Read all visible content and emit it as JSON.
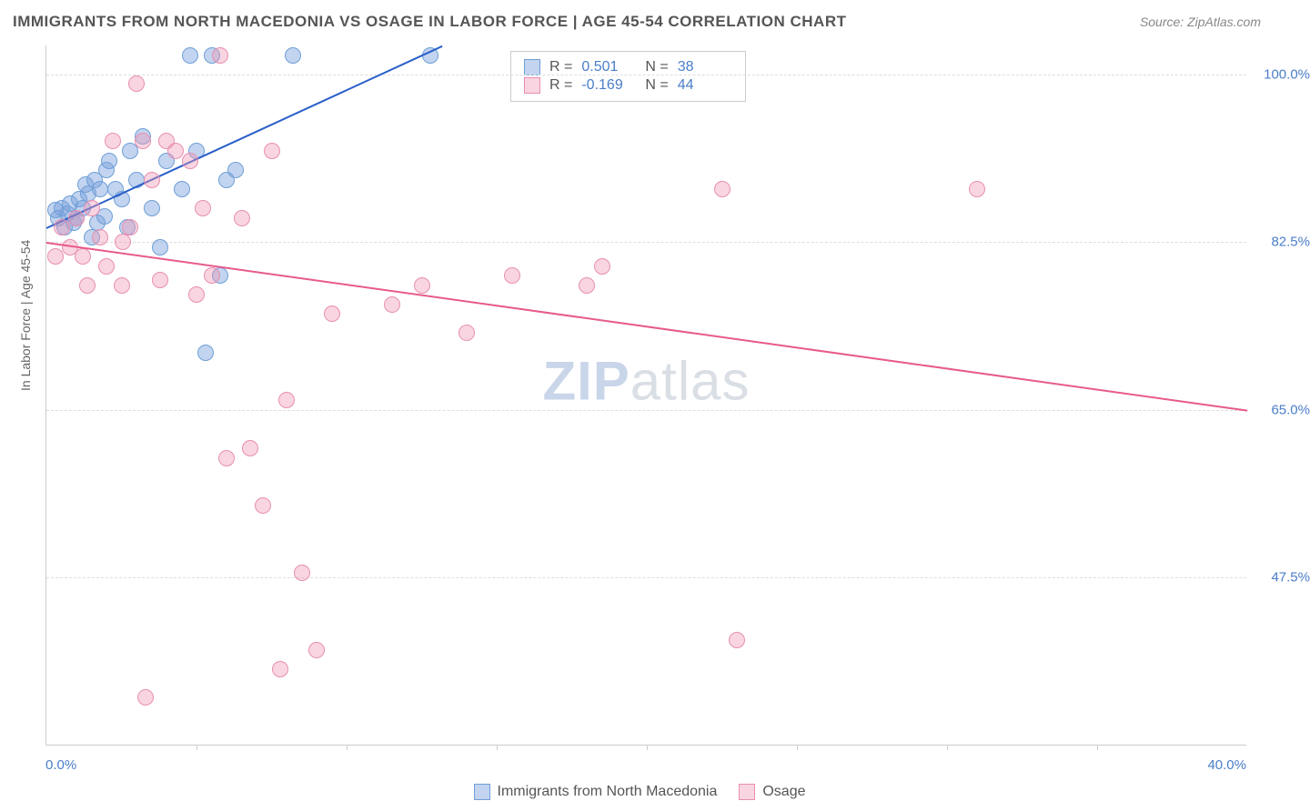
{
  "title": "IMMIGRANTS FROM NORTH MACEDONIA VS OSAGE IN LABOR FORCE | AGE 45-54 CORRELATION CHART",
  "source": "Source: ZipAtlas.com",
  "y_axis_label": "In Labor Force | Age 45-54",
  "watermark_a": "ZIP",
  "watermark_b": "atlas",
  "chart": {
    "type": "scatter",
    "xlim": [
      0,
      40
    ],
    "ylim": [
      30,
      103
    ],
    "x_ticks": [
      0,
      40
    ],
    "x_tick_labels": [
      "0.0%",
      "40.0%"
    ],
    "x_minor_tick_positions": [
      5,
      10,
      15,
      20,
      25,
      30,
      35
    ],
    "y_ticks": [
      47.5,
      65.0,
      82.5,
      100.0
    ],
    "y_tick_labels": [
      "47.5%",
      "65.0%",
      "82.5%",
      "100.0%"
    ],
    "background_color": "#ffffff",
    "grid_color": "#dddddd",
    "series": [
      {
        "name": "Immigrants from North Macedonia",
        "marker_fill": "rgba(120,160,220,0.45)",
        "marker_stroke": "#6f9fd8",
        "line_color": "#2a5fc9",
        "r_label": "R =",
        "r_value": "0.501",
        "n_label": "N =",
        "n_value": "38",
        "trend": {
          "x1": 0,
          "y1": 84,
          "x2": 13.2,
          "y2": 103
        },
        "points": [
          [
            0.4,
            85
          ],
          [
            0.5,
            86
          ],
          [
            0.6,
            84
          ],
          [
            0.7,
            85.5
          ],
          [
            0.8,
            86.5
          ],
          [
            0.9,
            84.5
          ],
          [
            1.0,
            85
          ],
          [
            1.1,
            87
          ],
          [
            1.2,
            86
          ],
          [
            1.3,
            88.5
          ],
          [
            1.4,
            87.5
          ],
          [
            1.5,
            83
          ],
          [
            1.6,
            89
          ],
          [
            1.8,
            88
          ],
          [
            2.0,
            90
          ],
          [
            2.1,
            91
          ],
          [
            2.3,
            88
          ],
          [
            2.5,
            87
          ],
          [
            2.8,
            92
          ],
          [
            3.0,
            89
          ],
          [
            3.2,
            93.5
          ],
          [
            3.5,
            86
          ],
          [
            3.8,
            82
          ],
          [
            4.0,
            91
          ],
          [
            4.5,
            88
          ],
          [
            4.8,
            102
          ],
          [
            5.0,
            92
          ],
          [
            5.3,
            71
          ],
          [
            5.5,
            102
          ],
          [
            5.8,
            79
          ],
          [
            6.0,
            89
          ],
          [
            6.3,
            90
          ],
          [
            8.2,
            102
          ],
          [
            2.7,
            84
          ],
          [
            1.7,
            84.5
          ],
          [
            1.95,
            85.2
          ],
          [
            0.3,
            85.8
          ],
          [
            12.8,
            102
          ]
        ]
      },
      {
        "name": "Osage",
        "marker_fill": "rgba(240,150,180,0.4)",
        "marker_stroke": "#e88fb0",
        "line_color": "#e75a8c",
        "r_label": "R =",
        "r_value": "-0.169",
        "n_label": "N =",
        "n_value": "44",
        "trend": {
          "x1": 0,
          "y1": 82.5,
          "x2": 40,
          "y2": 65
        },
        "points": [
          [
            0.5,
            84
          ],
          [
            0.8,
            82
          ],
          [
            1.0,
            85
          ],
          [
            1.2,
            81
          ],
          [
            1.5,
            86
          ],
          [
            1.8,
            83
          ],
          [
            2.0,
            80
          ],
          [
            2.2,
            93
          ],
          [
            2.5,
            78
          ],
          [
            2.8,
            84
          ],
          [
            3.0,
            99
          ],
          [
            3.2,
            93
          ],
          [
            3.5,
            89
          ],
          [
            3.8,
            78.5
          ],
          [
            4.0,
            93
          ],
          [
            4.3,
            92
          ],
          [
            4.8,
            91
          ],
          [
            5.2,
            86
          ],
          [
            5.5,
            79
          ],
          [
            5.8,
            102
          ],
          [
            6.0,
            60
          ],
          [
            6.5,
            85
          ],
          [
            6.8,
            61
          ],
          [
            7.2,
            55
          ],
          [
            7.5,
            92
          ],
          [
            8.0,
            66
          ],
          [
            8.5,
            48
          ],
          [
            9.0,
            40
          ],
          [
            9.5,
            75
          ],
          [
            11.5,
            76
          ],
          [
            12.5,
            78
          ],
          [
            14.0,
            73
          ],
          [
            15.5,
            79
          ],
          [
            18.0,
            78
          ],
          [
            18.5,
            80
          ],
          [
            22.5,
            88
          ],
          [
            23.0,
            41
          ],
          [
            7.8,
            38
          ],
          [
            3.3,
            35
          ],
          [
            31.0,
            88
          ],
          [
            0.3,
            81
          ],
          [
            1.35,
            78
          ],
          [
            2.55,
            82.5
          ],
          [
            5.0,
            77
          ]
        ]
      }
    ]
  },
  "legend": {
    "items": [
      "Immigrants from North Macedonia",
      "Osage"
    ]
  }
}
